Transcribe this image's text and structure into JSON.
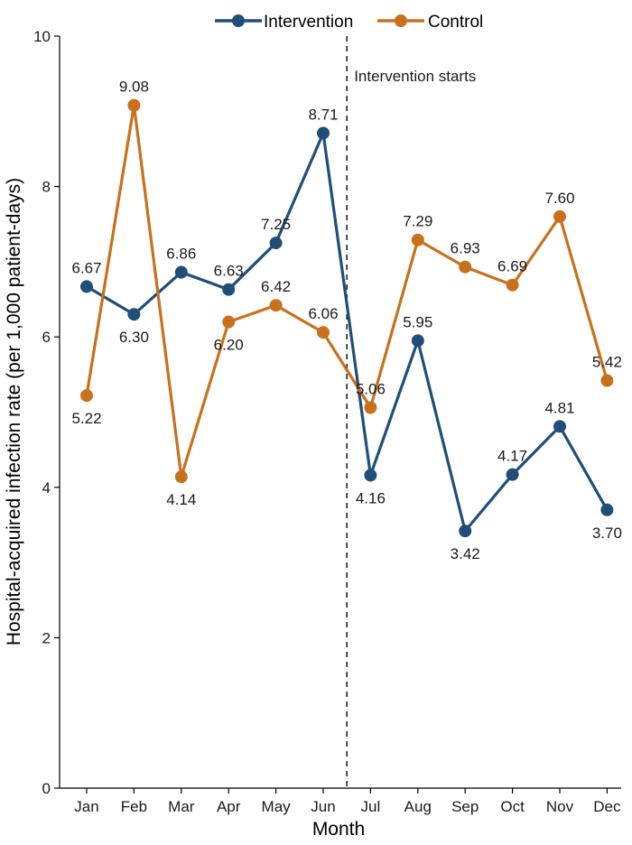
{
  "chart_data": {
    "type": "line",
    "title": "",
    "xlabel": "Month",
    "ylabel": "Hospital-acquired infection rate (per 1,000 patient-days)",
    "categories": [
      "Jan",
      "Feb",
      "Mar",
      "Apr",
      "May",
      "Jun",
      "Jul",
      "Aug",
      "Sep",
      "Oct",
      "Nov",
      "Dec"
    ],
    "ylim": [
      0,
      10
    ],
    "yticks": [
      0,
      2,
      4,
      6,
      8,
      10
    ],
    "grid": false,
    "legend_position": "top",
    "series": [
      {
        "name": "Intervention",
        "color": "#1f4e79",
        "values": [
          6.67,
          6.3,
          6.86,
          6.63,
          7.25,
          8.71,
          4.16,
          5.95,
          3.42,
          4.17,
          4.81,
          3.7
        ],
        "labels": [
          "6.67",
          "6.30",
          "6.86",
          "6.63",
          "7.25",
          "8.71",
          "4.16",
          "5.95",
          "3.42",
          "4.17",
          "4.81",
          "3.70"
        ],
        "label_pos": [
          "above",
          "below",
          "above",
          "above",
          "above",
          "above",
          "below",
          "above",
          "below",
          "above",
          "above",
          "below"
        ]
      },
      {
        "name": "Control",
        "color": "#c8711c",
        "values": [
          5.22,
          9.08,
          4.14,
          6.2,
          6.42,
          6.06,
          5.06,
          7.29,
          6.93,
          6.69,
          7.6,
          5.42
        ],
        "labels": [
          "5.22",
          "9.08",
          "4.14",
          "6.20",
          "6.42",
          "6.06",
          "5.06",
          "7.29",
          "6.93",
          "6.69",
          "7.60",
          "5.42"
        ],
        "label_pos": [
          "below",
          "above",
          "below",
          "below",
          "above",
          "above",
          "above",
          "above",
          "above",
          "above",
          "above",
          "above"
        ]
      }
    ],
    "annotations": [
      {
        "text": "Intervention starts",
        "x_between": [
          "Jun",
          "Jul"
        ],
        "style": "dashed-vertical-line"
      }
    ]
  }
}
